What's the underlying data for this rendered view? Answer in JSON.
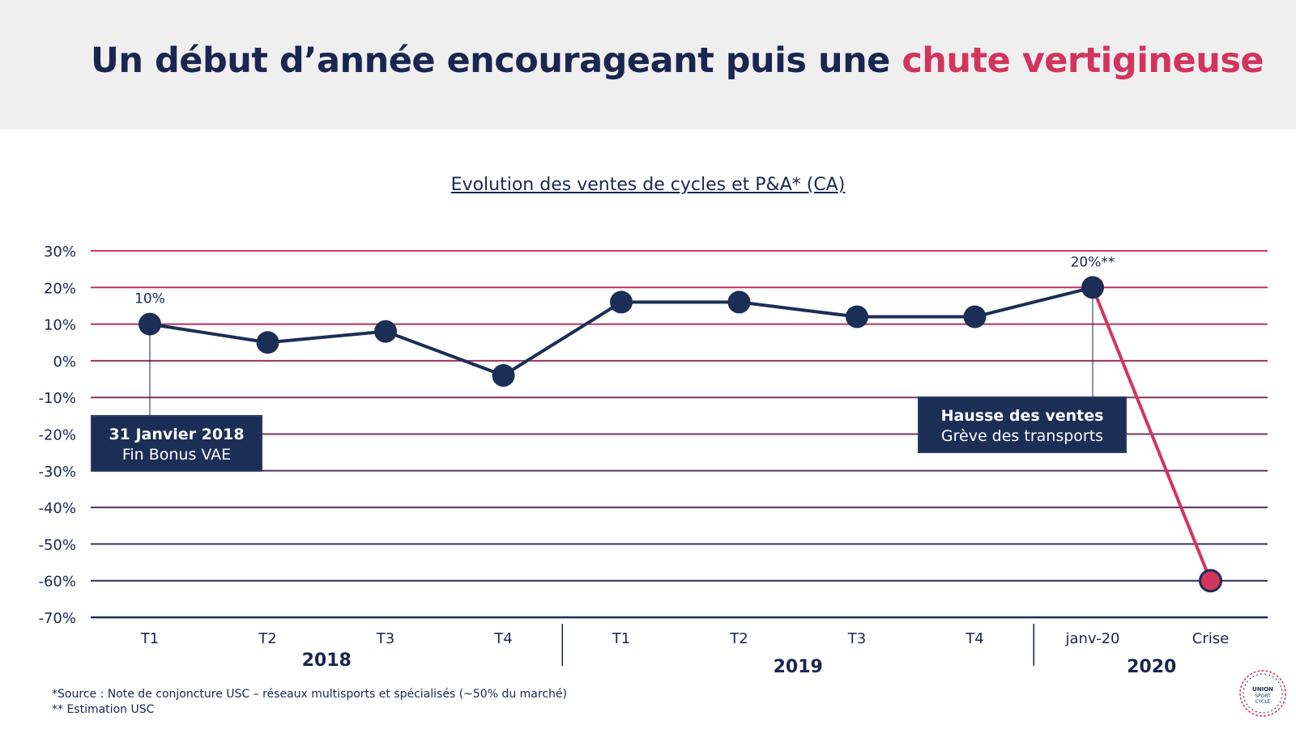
{
  "title": {
    "main": "Un début d’année encourageant puis une ",
    "accent": "chute vertigineuse"
  },
  "chart_data": {
    "type": "line",
    "title": "Evolution des ventes de cycles et P&A* (CA)",
    "categories": [
      "T1",
      "T2",
      "T3",
      "T4",
      "T1",
      "T2",
      "T3",
      "T4",
      "janv-20",
      "Crise"
    ],
    "groups": [
      {
        "label": "2018",
        "from": 0,
        "to": 3
      },
      {
        "label": "2019",
        "from": 4,
        "to": 7
      },
      {
        "label": "2020",
        "from": 8,
        "to": 9
      }
    ],
    "values": [
      10,
      5,
      8,
      -4,
      16,
      16,
      12,
      12,
      20,
      -60
    ],
    "ylim": [
      -70,
      30
    ],
    "yticks": [
      30,
      20,
      10,
      0,
      -10,
      -20,
      -30,
      -40,
      -50,
      -60,
      -70
    ],
    "ytick_labels": [
      "30%",
      "20%",
      "10%",
      "0%",
      "-10%",
      "-20%",
      "-30%",
      "-40%",
      "-50%",
      "-60%",
      "-70%"
    ],
    "data_labels": [
      {
        "index": 0,
        "text": "10%"
      },
      {
        "index": 8,
        "text": "20%**"
      }
    ],
    "colors": {
      "series": "#1b2e56",
      "crisis": "#d1355d",
      "accent": "#d1355d",
      "grid_top": "#d1355d",
      "grid_bottom": "#1b2e56"
    }
  },
  "annotations": [
    {
      "bold": "31 Janvier 2018",
      "normal": "Fin Bonus VAE"
    },
    {
      "bold": "Hausse des ventes",
      "normal": "Grève des transports"
    }
  ],
  "footnotes": {
    "source": "*Source : Note de conjoncture USC – réseaux multisports et spécialisés (~50% du marché)",
    "estimation": "** Estimation USC"
  },
  "logo": {
    "icon": "union-sport-cycle-logo",
    "text": "UNION SPORT & CYCLE"
  }
}
